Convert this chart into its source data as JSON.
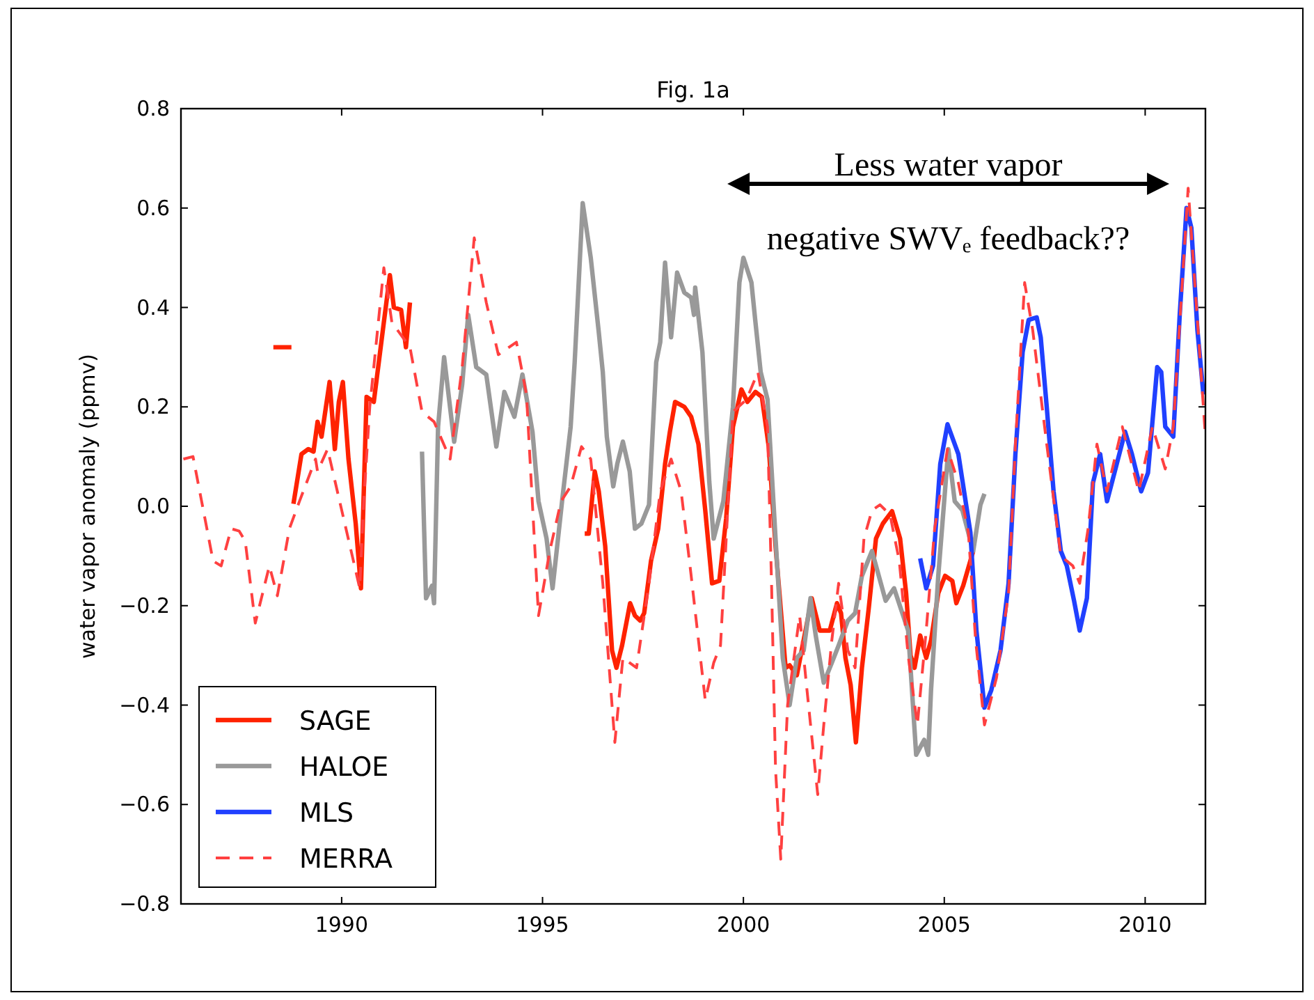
{
  "chart_data": {
    "type": "line",
    "title": "Fig. 1a",
    "ylabel": "water vapor anomaly (ppmv)",
    "xlim": [
      1986,
      2011.5
    ],
    "xticks": [
      1990,
      1995,
      2000,
      2005,
      2010
    ],
    "ylim": [
      -0.8,
      0.8
    ],
    "yticks": [
      {
        "value": -0.8,
        "label": "−0.8"
      },
      {
        "value": -0.6,
        "label": "−0.6"
      },
      {
        "value": -0.4,
        "label": "−0.4"
      },
      {
        "value": -0.2,
        "label": "−0.2"
      },
      {
        "value": 0,
        "label": "0.0"
      },
      0.2,
      0.4,
      0.6,
      0.8
    ],
    "legend": "bottom left",
    "annotations": [
      "Less water vapor",
      "negative SWVₑ feedback??"
    ],
    "series": [
      {
        "name": "SAGE",
        "color": "#ff2200",
        "line_style": "solid",
        "x": [
          1988.3,
          1988.75,
          1988.78,
          1988.8,
          1989.0,
          1989.17,
          1989.3,
          1989.4,
          1989.5,
          1989.7,
          1989.83,
          1989.93,
          1990.03,
          1990.17,
          1990.35,
          1990.48,
          1990.62,
          1990.8,
          1991.05,
          1991.2,
          1991.3,
          1991.48,
          1991.6,
          1991.7,
          1993.0,
          1996.05,
          1996.15,
          1996.3,
          1996.4,
          1996.56,
          1996.73,
          1996.84,
          1996.98,
          1997.18,
          1997.3,
          1997.43,
          1997.53,
          1997.7,
          1997.88,
          1998.05,
          1998.17,
          1998.3,
          1998.53,
          1998.7,
          1998.88,
          1999.05,
          1999.22,
          1999.4,
          1999.57,
          1999.74,
          1999.95,
          2000.1,
          2000.3,
          2000.46,
          2000.63,
          2000.8,
          2001.05,
          2001.15,
          2001.33,
          2001.57,
          2001.7,
          2001.9,
          2002.15,
          2002.33,
          2002.43,
          2002.54,
          2002.67,
          2002.8,
          2002.95,
          2003.12,
          2003.3,
          2003.47,
          2003.7,
          2003.9,
          2004.05,
          2004.16,
          2004.26,
          2004.4,
          2004.55,
          2004.67,
          2004.85,
          2005.02,
          2005.2,
          2005.3,
          2005.47,
          2005.72
        ],
        "values": [
          0.32,
          0.32,
          null,
          0.005,
          0.105,
          0.115,
          0.11,
          0.17,
          0.14,
          0.25,
          0.115,
          0.21,
          0.25,
          0.095,
          -0.035,
          -0.165,
          0.22,
          0.21,
          0.37,
          0.465,
          0.4,
          0.395,
          0.32,
          0.41,
          null,
          -0.055,
          -0.055,
          0.07,
          0.03,
          -0.08,
          -0.29,
          -0.325,
          -0.28,
          -0.195,
          -0.22,
          -0.23,
          -0.215,
          -0.11,
          -0.045,
          0.085,
          0.15,
          0.21,
          0.2,
          0.18,
          0.125,
          -0.008,
          -0.155,
          -0.15,
          -0.025,
          0.16,
          0.235,
          0.21,
          0.23,
          0.22,
          0.12,
          -0.08,
          -0.325,
          -0.32,
          -0.34,
          -0.24,
          -0.185,
          -0.25,
          -0.25,
          -0.195,
          -0.215,
          -0.305,
          -0.36,
          -0.475,
          -0.325,
          -0.205,
          -0.065,
          -0.035,
          -0.01,
          -0.065,
          -0.175,
          -0.3,
          -0.325,
          -0.26,
          -0.305,
          -0.27,
          -0.175,
          -0.14,
          -0.15,
          -0.195,
          -0.16,
          -0.09
        ]
      },
      {
        "name": "HALOE",
        "color": "#999999",
        "line_style": "solid",
        "x": [
          1992.0,
          1992.1,
          1992.25,
          1992.3,
          1992.4,
          1992.55,
          1992.8,
          1993.0,
          1993.15,
          1993.35,
          1993.6,
          1993.85,
          1994.05,
          1994.3,
          1994.5,
          1994.75,
          1994.9,
          1995.1,
          1995.25,
          1995.5,
          1995.7,
          1995.8,
          1996.0,
          1996.2,
          1996.4,
          1996.5,
          1996.6,
          1996.76,
          1996.86,
          1997.0,
          1997.17,
          1997.3,
          1997.46,
          1997.65,
          1997.83,
          1997.93,
          1998.05,
          1998.2,
          1998.35,
          1998.53,
          1998.7,
          1998.77,
          1998.8,
          1998.98,
          1999.15,
          1999.26,
          1999.5,
          1999.74,
          1999.9,
          2000.0,
          2000.2,
          2000.3,
          2000.43,
          2000.6,
          2000.8,
          2000.98,
          2001.15,
          2001.33,
          2001.5,
          2001.67,
          2001.8,
          2002.0,
          2002.2,
          2002.37,
          2002.6,
          2002.78,
          2002.95,
          2003.2,
          2003.54,
          2003.75,
          2004.1,
          2004.3,
          2004.5,
          2004.6,
          2004.67,
          2004.85,
          2005.1,
          2005.26,
          2005.45,
          2005.72,
          2005.9,
          2006.0
        ],
        "values": [
          0.11,
          -0.185,
          -0.16,
          -0.195,
          0.16,
          0.3,
          0.13,
          0.245,
          0.385,
          0.28,
          0.265,
          0.12,
          0.23,
          0.18,
          0.265,
          0.15,
          0.01,
          -0.065,
          -0.165,
          0.02,
          0.16,
          0.29,
          0.61,
          0.5,
          0.35,
          0.27,
          0.14,
          0.04,
          0.085,
          0.13,
          0.07,
          -0.045,
          -0.035,
          0.003,
          0.29,
          0.33,
          0.49,
          0.34,
          0.47,
          0.43,
          0.42,
          0.385,
          0.44,
          0.31,
          0.05,
          -0.065,
          0.01,
          0.2,
          0.45,
          0.5,
          0.45,
          0.37,
          0.27,
          0.215,
          -0.065,
          -0.305,
          -0.4,
          -0.305,
          -0.29,
          -0.185,
          -0.26,
          -0.355,
          -0.315,
          -0.28,
          -0.23,
          -0.215,
          -0.14,
          -0.09,
          -0.19,
          -0.165,
          -0.25,
          -0.5,
          -0.47,
          -0.5,
          -0.37,
          -0.14,
          0.115,
          0.01,
          -0.008,
          -0.09,
          0.003,
          0.025
        ]
      },
      {
        "name": "MLS",
        "color": "#2040ff",
        "line_style": "solid",
        "x": [
          2004.4,
          2004.55,
          2004.72,
          2004.9,
          2005.08,
          2005.35,
          2005.65,
          2005.8,
          2006.0,
          2006.17,
          2006.4,
          2006.6,
          2006.77,
          2006.95,
          2007.1,
          2007.3,
          2007.4,
          2007.55,
          2007.72,
          2007.9,
          2008.05,
          2008.23,
          2008.37,
          2008.55,
          2008.7,
          2008.88,
          2009.05,
          2009.26,
          2009.5,
          2009.67,
          2009.9,
          2010.07,
          2010.3,
          2010.4,
          2010.5,
          2010.7,
          2010.86,
          2011.03,
          2011.15,
          2011.3,
          2011.45
        ],
        "values": [
          -0.105,
          -0.165,
          -0.12,
          0.085,
          0.165,
          0.105,
          -0.053,
          -0.25,
          -0.405,
          -0.37,
          -0.29,
          -0.155,
          0.105,
          0.31,
          0.375,
          0.38,
          0.34,
          0.2,
          0.03,
          -0.09,
          -0.12,
          -0.19,
          -0.25,
          -0.185,
          0.047,
          0.105,
          0.01,
          0.075,
          0.15,
          0.105,
          0.03,
          0.067,
          0.28,
          0.27,
          0.16,
          0.14,
          0.385,
          0.6,
          0.56,
          0.355,
          0.225
        ]
      },
      {
        "name": "MERRA",
        "color": "#ff4040",
        "line_style": "dashed",
        "x": [
          1986.06,
          1986.3,
          1986.8,
          1987.0,
          1987.25,
          1987.45,
          1987.6,
          1987.85,
          1988.2,
          1988.4,
          1988.7,
          1988.95,
          1989.35,
          1989.4,
          1989.65,
          1989.93,
          1990.45,
          1990.55,
          1990.7,
          1991.05,
          1991.25,
          1991.7,
          1992.0,
          1992.3,
          1992.7,
          1993.0,
          1993.3,
          1993.6,
          1993.9,
          1994.35,
          1994.6,
          1994.9,
          1995.18,
          1995.46,
          1995.7,
          1995.97,
          1996.2,
          1996.5,
          1996.8,
          1997.0,
          1997.34,
          1997.65,
          1997.93,
          1998.2,
          1998.45,
          1998.7,
          1999.05,
          1999.26,
          1999.43,
          1999.74,
          2000.08,
          2000.36,
          2000.6,
          2000.7,
          2000.8,
          2000.93,
          2001.1,
          2001.4,
          2001.57,
          2001.85,
          2002.0,
          2002.2,
          2002.37,
          2002.6,
          2002.78,
          2003.0,
          2003.2,
          2003.4,
          2003.65,
          2003.88,
          2004.1,
          2004.33,
          2004.55,
          2004.76,
          2005.08,
          2005.35,
          2005.6,
          2005.78,
          2006.0,
          2006.3,
          2006.6,
          2006.77,
          2007.0,
          2007.2,
          2007.55,
          2007.9,
          2008.2,
          2008.37,
          2008.58,
          2008.8,
          2009.05,
          2009.43,
          2009.84,
          2010.18,
          2010.5,
          2010.7,
          2011.07,
          2011.3,
          2011.5
        ],
        "values": [
          0.095,
          0.1,
          -0.11,
          -0.12,
          -0.045,
          -0.05,
          -0.07,
          -0.235,
          -0.12,
          -0.18,
          -0.045,
          0.01,
          0.095,
          0.07,
          0.115,
          0.017,
          -0.165,
          0.01,
          0.2,
          0.48,
          0.37,
          0.32,
          0.19,
          0.17,
          0.095,
          0.28,
          0.54,
          0.41,
          0.305,
          0.33,
          0.225,
          -0.22,
          -0.09,
          0.01,
          0.04,
          0.12,
          0.095,
          -0.155,
          -0.475,
          -0.305,
          -0.325,
          -0.155,
          0.03,
          0.095,
          0.03,
          -0.14,
          -0.39,
          -0.315,
          -0.28,
          0.19,
          0.215,
          0.27,
          0.16,
          -0.155,
          -0.53,
          -0.71,
          -0.4,
          -0.22,
          -0.36,
          -0.58,
          -0.44,
          -0.27,
          -0.155,
          -0.29,
          -0.325,
          -0.065,
          -0.008,
          0.003,
          -0.017,
          -0.11,
          -0.3,
          -0.44,
          -0.25,
          -0.045,
          0.115,
          0.047,
          -0.053,
          -0.27,
          -0.44,
          -0.345,
          -0.175,
          0.125,
          0.45,
          0.355,
          0.125,
          -0.1,
          -0.12,
          -0.155,
          -0.045,
          0.125,
          0.03,
          0.16,
          0.03,
          0.16,
          0.075,
          0.16,
          0.64,
          0.375,
          0.14
        ]
      }
    ]
  }
}
